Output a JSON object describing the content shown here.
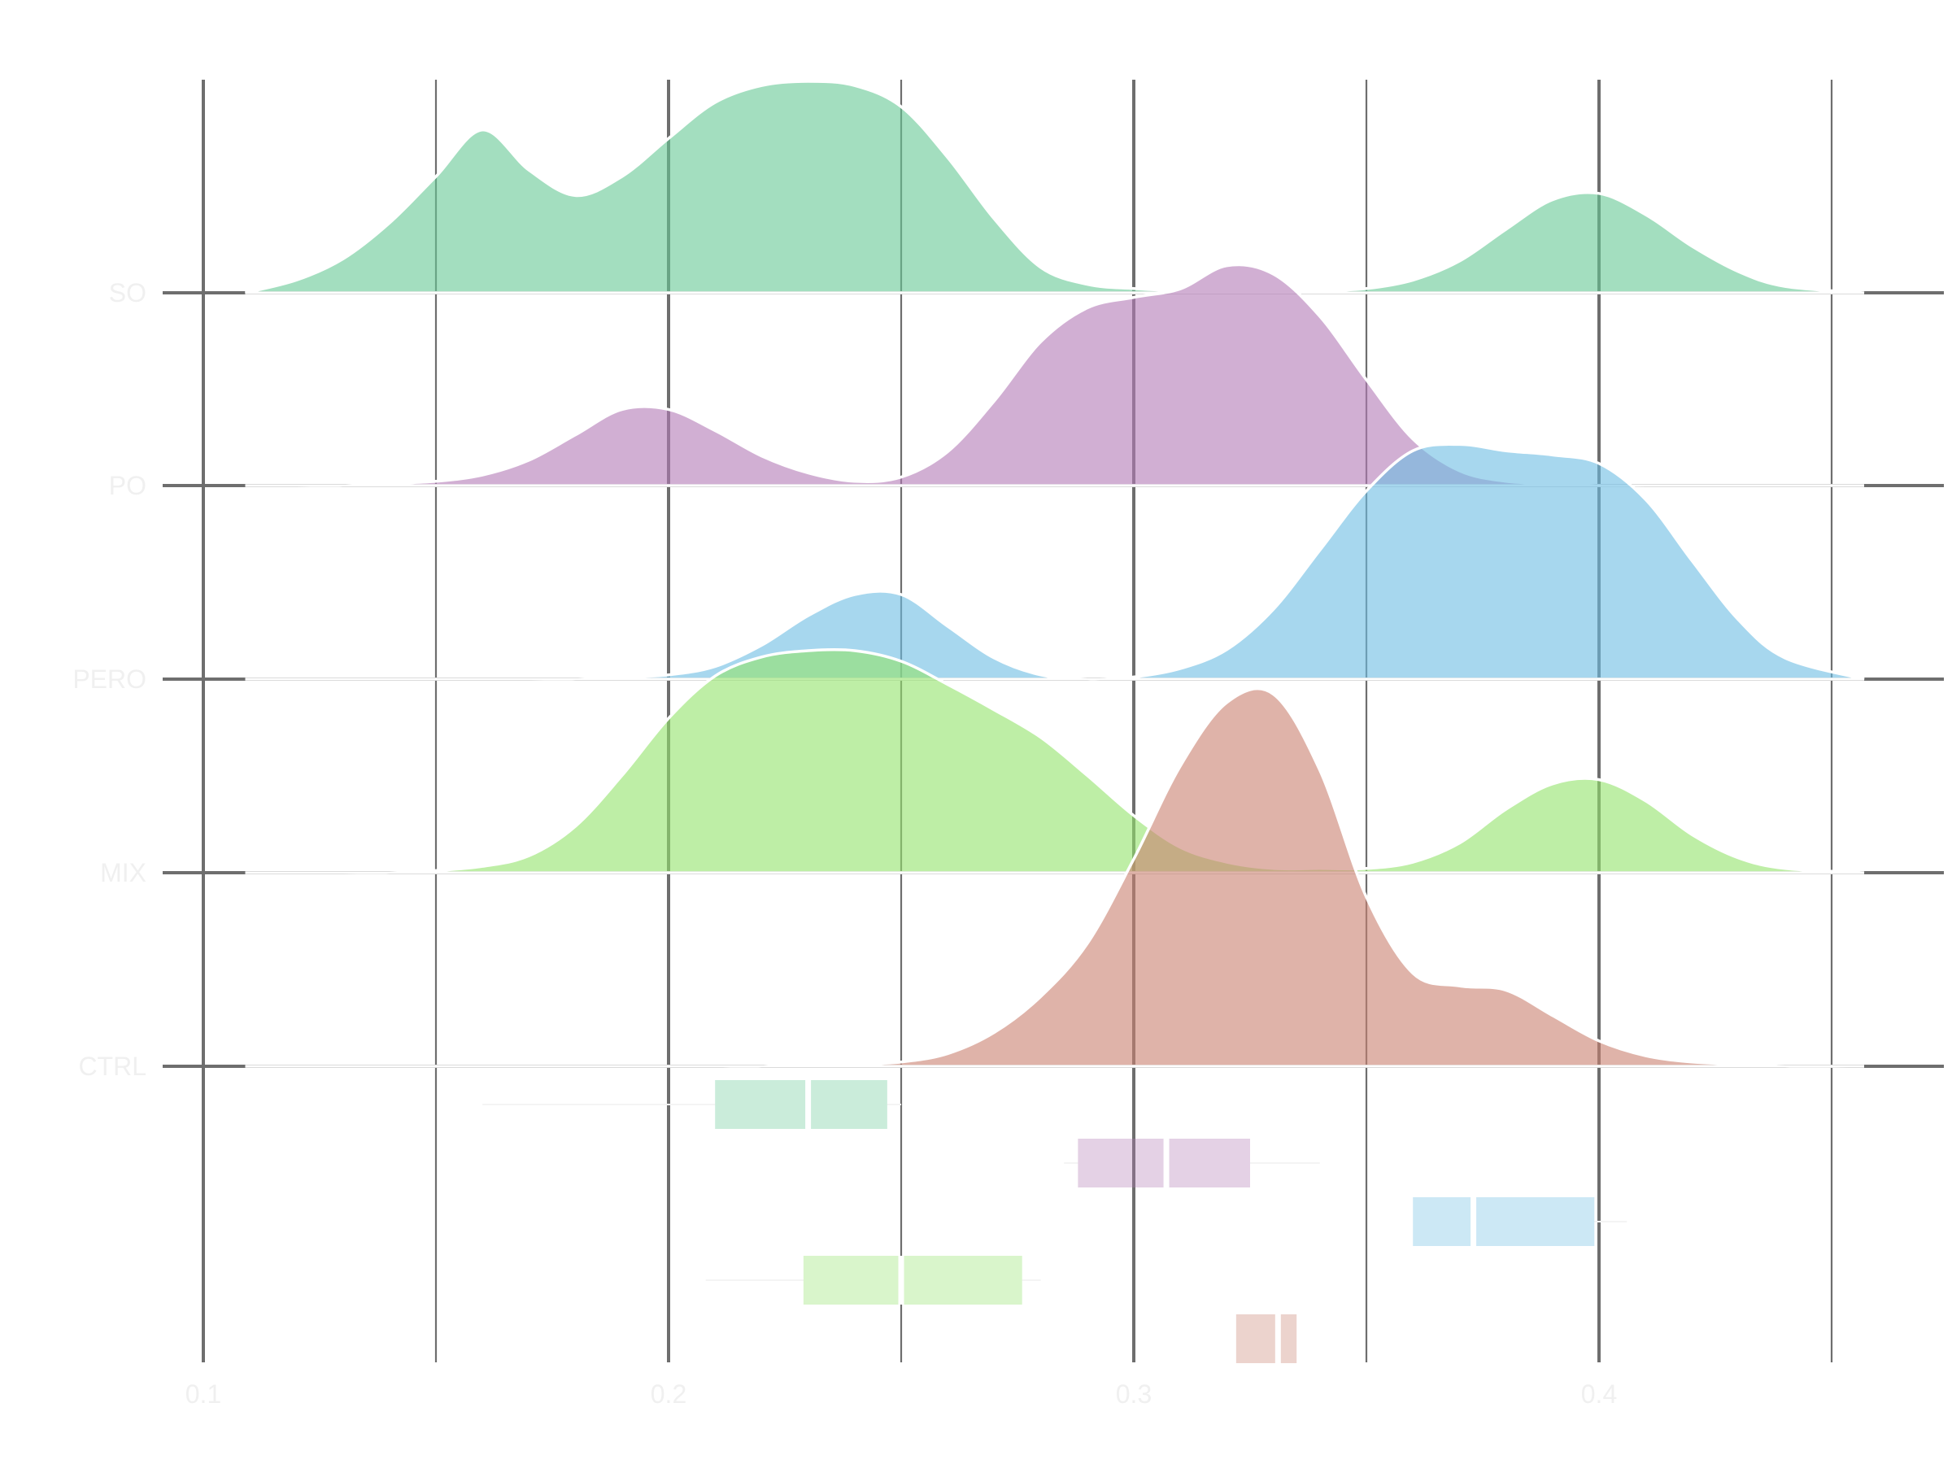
{
  "chart_data": {
    "type": "ridgeline",
    "title": "",
    "xlabel": "",
    "ylabel": "",
    "xlim": [
      0.1,
      0.46
    ],
    "x_ticks": [
      0.1,
      0.2,
      0.3,
      0.4
    ],
    "x_minor": [
      0.15,
      0.25,
      0.35,
      0.45
    ],
    "grid": true,
    "legend": "none",
    "categories": [
      "SO",
      "PO",
      "PERO",
      "MIX",
      "CTRL"
    ],
    "series": [
      {
        "name": "SO",
        "color": "#66c894",
        "density_x": [
          0.109,
          0.12,
          0.13,
          0.14,
          0.15,
          0.16,
          0.17,
          0.18,
          0.19,
          0.2,
          0.21,
          0.22,
          0.23,
          0.24,
          0.25,
          0.26,
          0.27,
          0.28,
          0.29,
          0.3,
          0.31,
          0.32,
          0.33,
          0.34,
          0.35,
          0.36,
          0.37,
          0.38,
          0.39,
          0.4,
          0.41,
          0.42,
          0.43,
          0.44,
          0.457
        ],
        "density_y": [
          0.0,
          0.06,
          0.16,
          0.33,
          0.55,
          0.77,
          0.58,
          0.46,
          0.55,
          0.73,
          0.9,
          0.98,
          1.0,
          0.98,
          0.88,
          0.64,
          0.35,
          0.12,
          0.04,
          0.02,
          0.01,
          0.01,
          0.01,
          0.01,
          0.02,
          0.06,
          0.15,
          0.3,
          0.44,
          0.47,
          0.37,
          0.22,
          0.1,
          0.03,
          0.0
        ],
        "box": {
          "whisker_low": 0.16,
          "q1": 0.21,
          "median": 0.23,
          "q3": 0.247,
          "whisker_high": 0.25
        }
      },
      {
        "name": "PO",
        "color": "#b27ab5",
        "density_x": [
          0.109,
          0.12,
          0.13,
          0.14,
          0.15,
          0.16,
          0.17,
          0.18,
          0.19,
          0.2,
          0.21,
          0.22,
          0.23,
          0.24,
          0.25,
          0.26,
          0.27,
          0.28,
          0.29,
          0.3,
          0.31,
          0.32,
          0.33,
          0.34,
          0.35,
          0.36,
          0.37,
          0.38,
          0.39,
          0.4,
          0.41,
          0.42,
          0.43,
          0.44,
          0.457
        ],
        "density_y": [
          0.0,
          0.0,
          0.0,
          0.01,
          0.02,
          0.05,
          0.12,
          0.24,
          0.36,
          0.36,
          0.26,
          0.14,
          0.06,
          0.02,
          0.04,
          0.16,
          0.4,
          0.68,
          0.84,
          0.89,
          0.93,
          1.04,
          1.0,
          0.8,
          0.5,
          0.22,
          0.07,
          0.02,
          0.01,
          0.0,
          0.0,
          0.0,
          0.0,
          0.0,
          0.0
        ],
        "box": {
          "whisker_low": 0.285,
          "q1": 0.288,
          "median": 0.307,
          "q3": 0.325,
          "whisker_high": 0.34
        }
      },
      {
        "name": "PERO",
        "color": "#6cbde3",
        "density_x": [
          0.109,
          0.12,
          0.13,
          0.14,
          0.15,
          0.16,
          0.17,
          0.18,
          0.19,
          0.2,
          0.21,
          0.22,
          0.23,
          0.24,
          0.25,
          0.26,
          0.27,
          0.28,
          0.29,
          0.3,
          0.31,
          0.32,
          0.33,
          0.34,
          0.35,
          0.36,
          0.37,
          0.38,
          0.39,
          0.4,
          0.41,
          0.42,
          0.43,
          0.44,
          0.457
        ],
        "density_y": [
          0.0,
          0.0,
          0.0,
          0.0,
          0.0,
          0.0,
          0.0,
          0.0,
          0.01,
          0.02,
          0.06,
          0.16,
          0.3,
          0.4,
          0.4,
          0.25,
          0.1,
          0.02,
          0.0,
          0.01,
          0.05,
          0.14,
          0.33,
          0.61,
          0.89,
          1.08,
          1.11,
          1.08,
          1.06,
          1.02,
          0.85,
          0.56,
          0.28,
          0.1,
          0.0
        ],
        "box": {
          "whisker_low": 0.36,
          "q1": 0.36,
          "median": 0.373,
          "q3": 0.399,
          "whisker_high": 0.406
        }
      },
      {
        "name": "MIX",
        "color": "#93e36a",
        "density_x": [
          0.109,
          0.12,
          0.13,
          0.14,
          0.15,
          0.16,
          0.17,
          0.18,
          0.19,
          0.2,
          0.21,
          0.22,
          0.23,
          0.24,
          0.25,
          0.26,
          0.27,
          0.28,
          0.29,
          0.3,
          0.31,
          0.32,
          0.33,
          0.34,
          0.35,
          0.36,
          0.37,
          0.38,
          0.39,
          0.4,
          0.41,
          0.42,
          0.43,
          0.44,
          0.457
        ],
        "density_y": [
          0.0,
          0.0,
          0.0,
          0.0,
          0.01,
          0.03,
          0.08,
          0.22,
          0.46,
          0.73,
          0.93,
          1.02,
          1.05,
          1.05,
          1.0,
          0.89,
          0.77,
          0.64,
          0.46,
          0.27,
          0.12,
          0.05,
          0.02,
          0.02,
          0.02,
          0.05,
          0.14,
          0.3,
          0.42,
          0.44,
          0.34,
          0.18,
          0.07,
          0.02,
          0.0
        ],
        "box": {
          "whisker_low": 0.208,
          "q1": 0.229,
          "median": 0.25,
          "q3": 0.276,
          "whisker_high": 0.28
        }
      },
      {
        "name": "CTRL",
        "color": "#c98170",
        "density_x": [
          0.109,
          0.12,
          0.13,
          0.14,
          0.15,
          0.16,
          0.17,
          0.18,
          0.19,
          0.2,
          0.21,
          0.22,
          0.23,
          0.24,
          0.25,
          0.26,
          0.27,
          0.28,
          0.29,
          0.3,
          0.31,
          0.32,
          0.33,
          0.34,
          0.35,
          0.36,
          0.37,
          0.38,
          0.39,
          0.4,
          0.41,
          0.42,
          0.43,
          0.44,
          0.457
        ],
        "density_y": [
          0.0,
          0.0,
          0.0,
          0.0,
          0.0,
          0.0,
          0.0,
          0.0,
          0.0,
          0.0,
          0.0,
          0.0,
          0.01,
          0.01,
          0.02,
          0.06,
          0.16,
          0.33,
          0.58,
          0.98,
          1.42,
          1.72,
          1.76,
          1.4,
          0.8,
          0.44,
          0.38,
          0.36,
          0.24,
          0.12,
          0.05,
          0.02,
          0.01,
          0.0,
          0.0
        ],
        "box": {
          "whisker_low": 0.322,
          "q1": 0.322,
          "median": 0.331,
          "q3": 0.335,
          "whisker_high": 0.335
        }
      }
    ]
  }
}
